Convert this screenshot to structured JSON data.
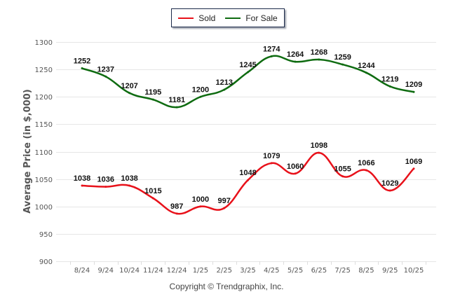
{
  "chart_data": {
    "type": "line",
    "title": "",
    "xlabel": "",
    "ylabel": "Average Price (in $,000)",
    "categories": [
      "8/24",
      "9/24",
      "10/24",
      "11/24",
      "12/24",
      "1/25",
      "2/25",
      "3/25",
      "4/25",
      "5/25",
      "6/25",
      "7/25",
      "8/25",
      "9/25",
      "10/25"
    ],
    "yticks": [
      900,
      950,
      1000,
      1050,
      1100,
      1150,
      1200,
      1250,
      1300
    ],
    "ylim": [
      900,
      1300
    ],
    "grid": true,
    "legend_position": "top-center",
    "series": [
      {
        "name": "Sold",
        "color": "#e8111a",
        "values": [
          1038,
          1036,
          1038,
          1015,
          987,
          1000,
          997,
          1048,
          1079,
          1060,
          1098,
          1055,
          1066,
          1029,
          1069
        ]
      },
      {
        "name": "For Sale",
        "color": "#0e6b10",
        "values": [
          1252,
          1237,
          1207,
          1195,
          1181,
          1200,
          1213,
          1245,
          1274,
          1264,
          1268,
          1259,
          1244,
          1219,
          1209
        ]
      }
    ],
    "footer": "Copyright © Trendgraphix, Inc."
  },
  "legend": {
    "items": [
      {
        "label": "Sold",
        "color": "#e8111a"
      },
      {
        "label": "For Sale",
        "color": "#0e6b10"
      }
    ]
  }
}
